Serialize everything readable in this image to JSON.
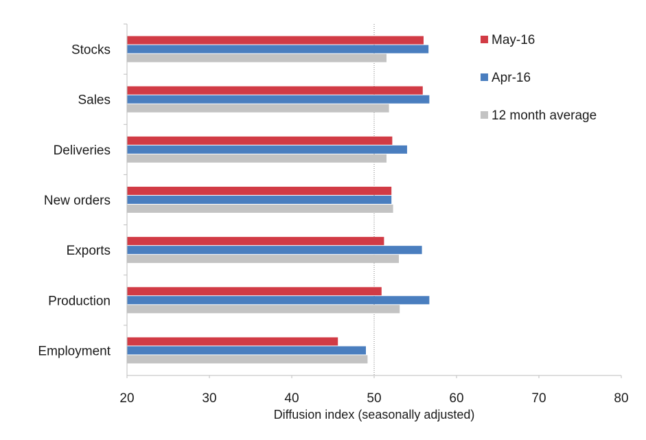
{
  "chart_data": {
    "type": "bar",
    "orientation": "horizontal",
    "categories": [
      "Stocks",
      "Sales",
      "Deliveries",
      "New orders",
      "Exports",
      "Production",
      "Employment"
    ],
    "series": [
      {
        "name": "May-16",
        "color": "#d13b45",
        "values": [
          56.0,
          55.9,
          52.2,
          52.1,
          51.2,
          50.9,
          45.6
        ]
      },
      {
        "name": "Apr-16",
        "color": "#4a7ebf",
        "values": [
          56.6,
          56.7,
          54.0,
          52.1,
          55.8,
          56.7,
          49.0
        ]
      },
      {
        "name": "12 month average",
        "color": "#c3c3c3",
        "values": [
          51.5,
          51.8,
          51.5,
          52.3,
          53.0,
          53.1,
          49.2
        ]
      }
    ],
    "xlabel": "Diffusion index (seasonally adjusted)",
    "ylabel": "",
    "xlim": [
      20,
      80
    ],
    "xticks": [
      20,
      30,
      40,
      50,
      60,
      70,
      80
    ],
    "reference_line": 50,
    "grid": false,
    "legend": "top-right"
  }
}
